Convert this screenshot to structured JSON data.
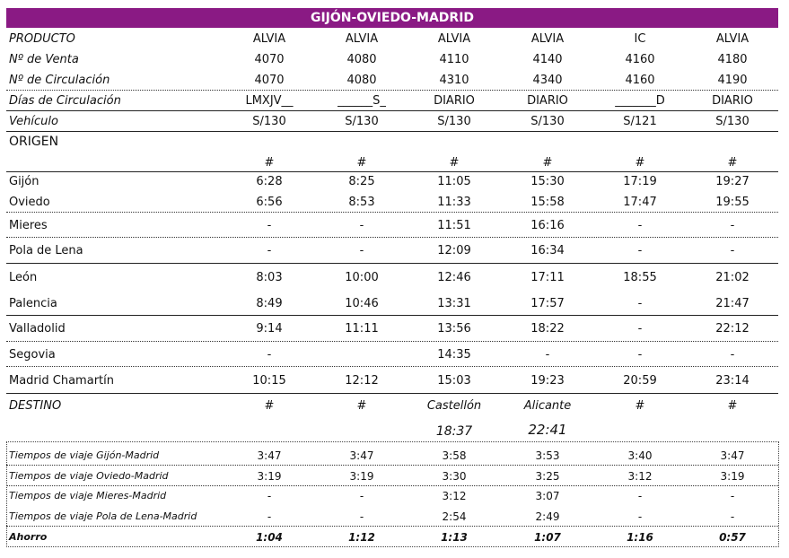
{
  "title": "GIJÓN-OVIEDO-MADRID",
  "header_rows": [
    {
      "label": "PRODUCTO",
      "values": [
        "ALVIA",
        "ALVIA",
        "ALVIA",
        "ALVIA",
        "IC",
        "ALVIA"
      ]
    },
    {
      "label": "Nº de Venta",
      "values": [
        "4070",
        "4080",
        "4110",
        "4140",
        "4160",
        "4180"
      ]
    },
    {
      "label": "Nº de Circulación",
      "values": [
        "4070",
        "4080",
        "4310",
        "4340",
        "4160",
        "4190"
      ]
    },
    {
      "label": "Días de Circulación",
      "values": [
        "LMXJV__",
        "______S_",
        "DIARIO",
        "DIARIO",
        "_______D",
        "DIARIO"
      ]
    },
    {
      "label": "Vehículo",
      "values": [
        "S/130",
        "S/130",
        "S/130",
        "S/130",
        "S/121",
        "S/130"
      ]
    }
  ],
  "origin_label": "ORIGEN",
  "origin_marks": [
    "#",
    "#",
    "#",
    "#",
    "#",
    "#"
  ],
  "stations": [
    {
      "label": "Gijón",
      "values": [
        "6:28",
        "8:25",
        "11:05",
        "15:30",
        "17:19",
        "19:27"
      ]
    },
    {
      "label": "Oviedo",
      "values": [
        "6:56",
        "8:53",
        "11:33",
        "15:58",
        "17:47",
        "19:55"
      ]
    },
    {
      "label": "Mieres",
      "values": [
        "-",
        "-",
        "11:51",
        "16:16",
        "-",
        "-"
      ]
    },
    {
      "label": "Pola de Lena",
      "values": [
        "-",
        "-",
        "12:09",
        "16:34",
        "-",
        "-"
      ]
    },
    {
      "label": "León",
      "values": [
        "8:03",
        "10:00",
        "12:46",
        "17:11",
        "18:55",
        "21:02"
      ]
    },
    {
      "label": "Palencia",
      "values": [
        "8:49",
        "10:46",
        "13:31",
        "17:57",
        "-",
        "21:47"
      ]
    },
    {
      "label": "Valladolid",
      "values": [
        "9:14",
        "11:11",
        "13:56",
        "18:22",
        "-",
        "22:12"
      ]
    },
    {
      "label": "Segovia",
      "values": [
        "-",
        "",
        "14:35",
        "-",
        "-",
        "-"
      ]
    },
    {
      "label": "Madrid Chamartín",
      "values": [
        "10:15",
        "12:12",
        "15:03",
        "19:23",
        "20:59",
        "23:14"
      ]
    }
  ],
  "destino": {
    "label": "DESTINO",
    "values": [
      "#",
      "#",
      "Castellón",
      "Alicante",
      "#",
      "#"
    ],
    "times": [
      "18:37",
      "22:41"
    ]
  },
  "travel_times": [
    {
      "label": "Tiempos de viaje Gijón-Madrid",
      "values": [
        "3:47",
        "3:47",
        "3:58",
        "3:53",
        "3:40",
        "3:47"
      ]
    },
    {
      "label": "Tiempos de viaje Oviedo-Madrid",
      "values": [
        "3:19",
        "3:19",
        "3:30",
        "3:25",
        "3:12",
        "3:19"
      ]
    },
    {
      "label": "Tiempos de viaje Mieres-Madrid",
      "values": [
        "-",
        "-",
        "3:12",
        "3:07",
        "-",
        "-"
      ]
    },
    {
      "label": "Tiempos de viaje Pola de Lena-Madrid",
      "values": [
        "-",
        "-",
        "2:54",
        "2:49",
        "-",
        "-"
      ]
    }
  ],
  "ahorro": {
    "label": "Ahorro",
    "values": [
      "1:04",
      "1:12",
      "1:13",
      "1:07",
      "1:16",
      "0:57"
    ]
  },
  "colors": {
    "title_bg": "#8a1a84",
    "title_fg": "#ffffff"
  }
}
